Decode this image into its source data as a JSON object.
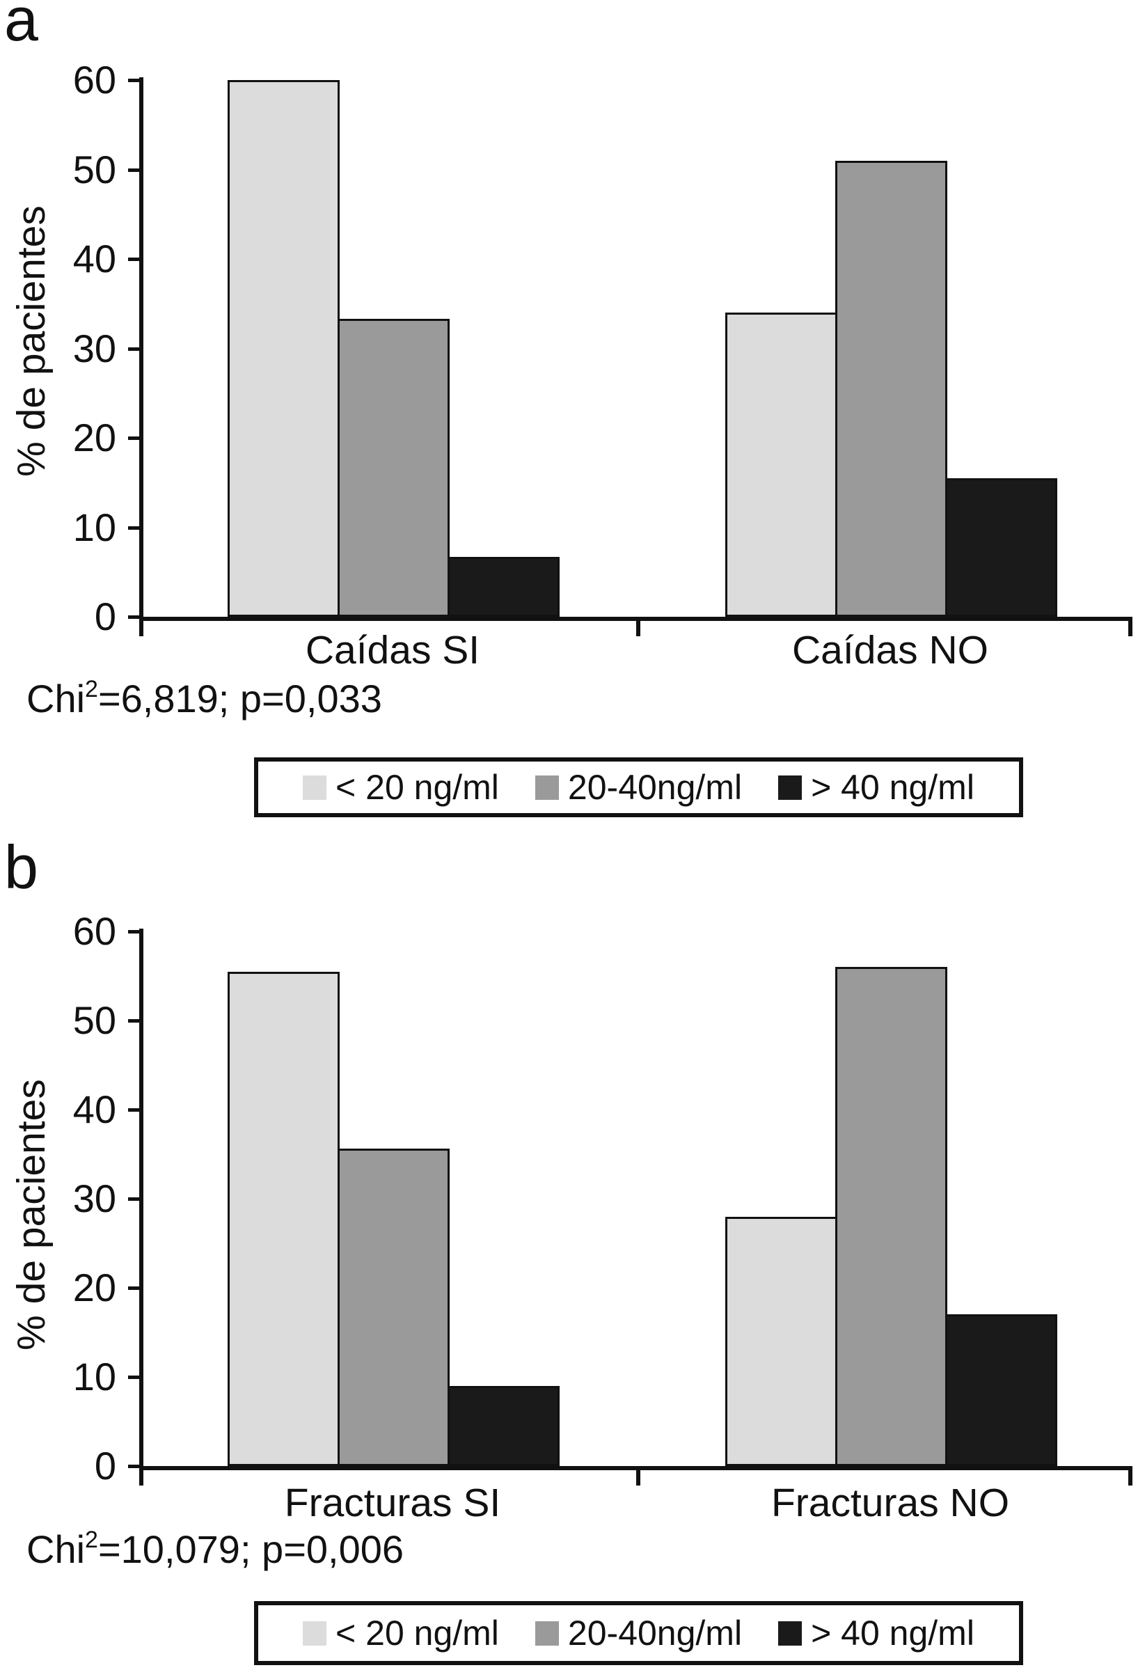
{
  "colors": {
    "light": "#dcdcdc",
    "mid": "#9a9a9a",
    "dark": "#1a1a1a",
    "line": "#111111",
    "background": "#ffffff"
  },
  "legend": {
    "items": [
      {
        "label": "< 20 ng/ml",
        "color": "light"
      },
      {
        "label": "20-40ng/ml",
        "color": "mid"
      },
      {
        "label": "> 40 ng/ml",
        "color": "dark"
      }
    ]
  },
  "chart_data": [
    {
      "type": "bar",
      "panel_letter": "a",
      "categories": [
        "Caídas SI",
        "Caídas NO"
      ],
      "series": [
        {
          "name": "< 20 ng/ml",
          "color": "light",
          "values": [
            60,
            34
          ]
        },
        {
          "name": "20-40ng/ml",
          "color": "mid",
          "values": [
            33.3,
            51
          ]
        },
        {
          "name": "> 40 ng/ml",
          "color": "dark",
          "values": [
            6.7,
            15.5
          ]
        }
      ],
      "ylabel": "% de pacientes",
      "xlabel": "",
      "ylim": [
        0,
        60
      ],
      "yticks": [
        0,
        10,
        20,
        30,
        40,
        50,
        60
      ],
      "grid": false,
      "legend_position": "bottom",
      "annotation": {
        "base": "Chi",
        "sup": "2",
        "rest": "=6,819; p=0,033"
      }
    },
    {
      "type": "bar",
      "panel_letter": "b",
      "categories": [
        "Fracturas SI",
        "Fracturas NO"
      ],
      "series": [
        {
          "name": "< 20 ng/ml",
          "color": "light",
          "values": [
            55.5,
            28
          ]
        },
        {
          "name": "20-40ng/ml",
          "color": "mid",
          "values": [
            35.6,
            56
          ]
        },
        {
          "name": "> 40 ng/ml",
          "color": "dark",
          "values": [
            9,
            17
          ]
        }
      ],
      "ylabel": "% de pacientes",
      "xlabel": "",
      "ylim": [
        0,
        60
      ],
      "yticks": [
        0,
        10,
        20,
        30,
        40,
        50,
        60
      ],
      "grid": false,
      "legend_position": "bottom",
      "annotation": {
        "base": "Chi",
        "sup": "2",
        "rest": "=10,079; p=0,006"
      }
    }
  ]
}
